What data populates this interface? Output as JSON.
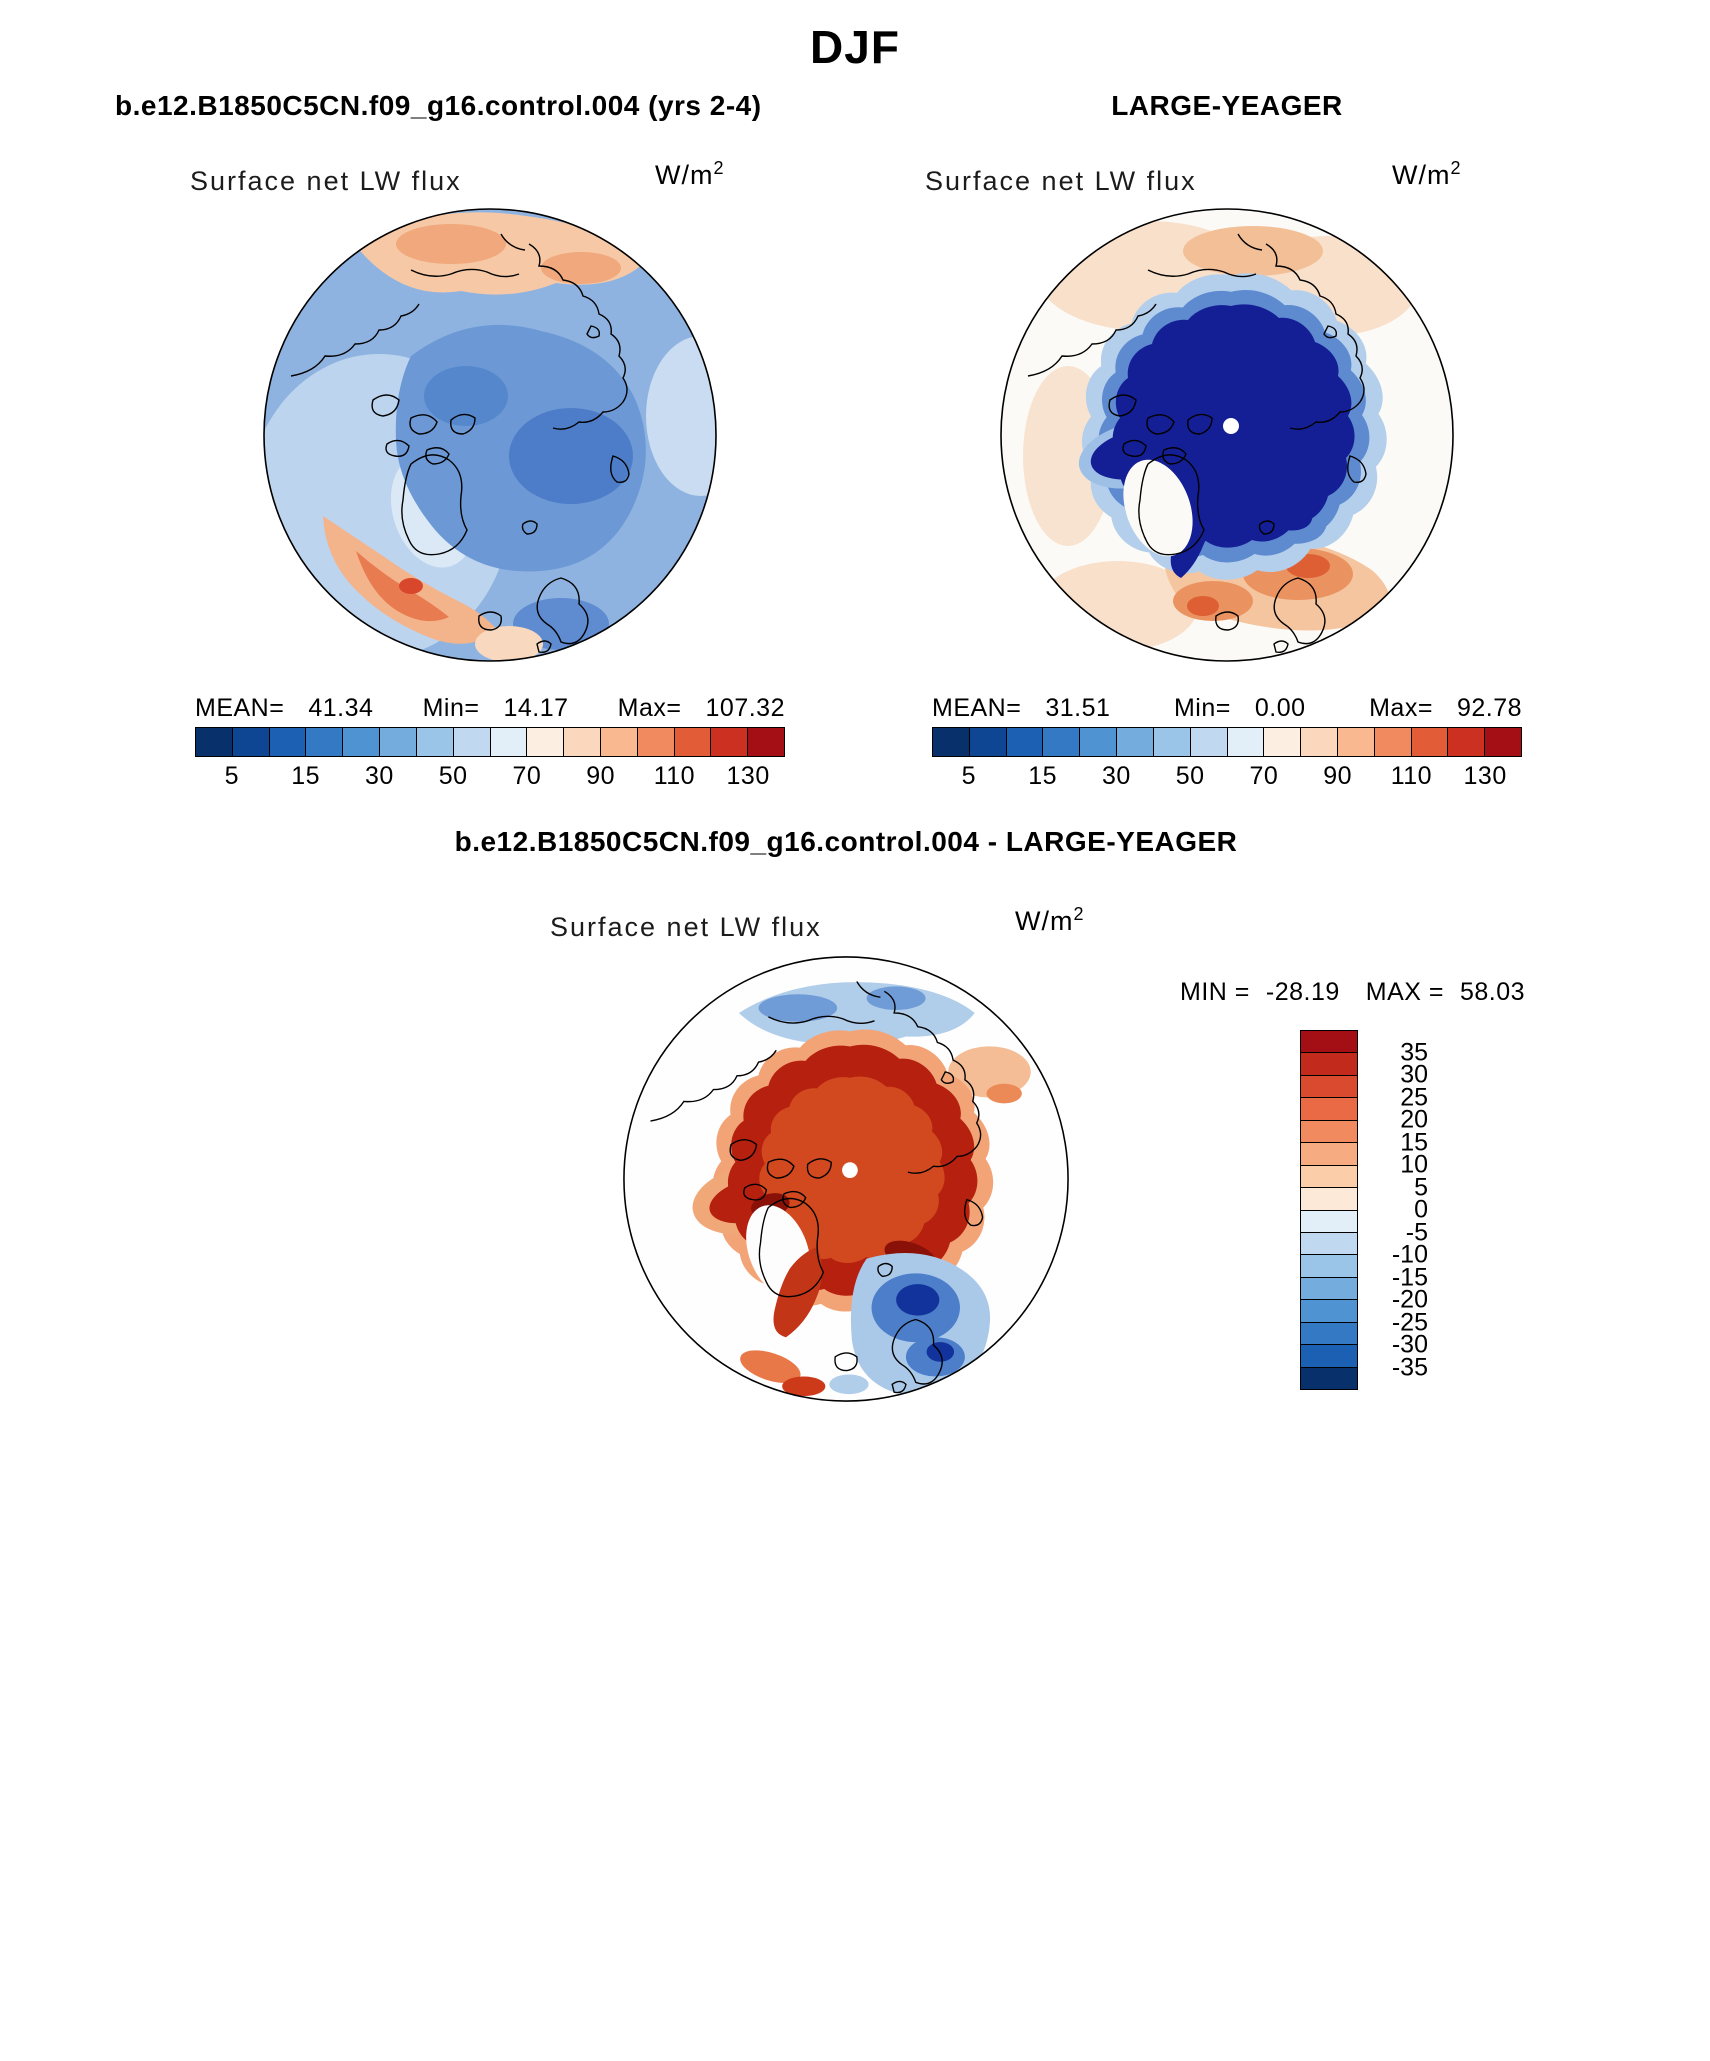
{
  "header": {
    "season_title": "DJF",
    "left_run_label": "b.e12.B1850C5CN.f09_g16.control.004 (yrs 2-4)",
    "right_run_label": "LARGE-YEAGER",
    "diff_heading": "b.e12.B1850C5CN.f09_g16.control.004 - LARGE-YEAGER"
  },
  "chart_data": [
    {
      "type": "heatmap",
      "panel": "model",
      "season": "DJF",
      "source": "b.e12.B1850C5CN.f09_g16.control.004 (yrs 2-4)",
      "title": "Surface net LW flux",
      "units_base": "W/m",
      "units_exp": "2",
      "projection": "north-polar-stereographic",
      "stats": {
        "mean_label": "MEAN=",
        "mean": "41.34",
        "min_label": "Min=",
        "min": "14.17",
        "max_label": "Max=",
        "max": "107.32"
      },
      "colorbar": {
        "orientation": "horizontal",
        "tick_values": [
          5,
          15,
          30,
          50,
          70,
          90,
          110,
          130
        ],
        "colors": [
          "#08306b",
          "#0f4694",
          "#1c60b4",
          "#3379c4",
          "#4f93d2",
          "#74acdd",
          "#9ac4e8",
          "#c0d9f0",
          "#e2eef8",
          "#fcefe2",
          "#fbd8bd",
          "#f9b890",
          "#f18a5f",
          "#e35c38",
          "#cc3021",
          "#a30f15"
        ]
      }
    },
    {
      "type": "heatmap",
      "panel": "observations",
      "season": "DJF",
      "source": "LARGE-YEAGER",
      "title": "Surface net LW flux",
      "units_base": "W/m",
      "units_exp": "2",
      "projection": "north-polar-stereographic",
      "stats": {
        "mean_label": "MEAN=",
        "mean": "31.51",
        "min_label": "Min=",
        "min": "0.00",
        "max_label": "Max=",
        "max": "92.78"
      },
      "colorbar": {
        "orientation": "horizontal",
        "tick_values": [
          5,
          15,
          30,
          50,
          70,
          90,
          110,
          130
        ],
        "colors": [
          "#08306b",
          "#0f4694",
          "#1c60b4",
          "#3379c4",
          "#4f93d2",
          "#74acdd",
          "#9ac4e8",
          "#c0d9f0",
          "#e2eef8",
          "#fcefe2",
          "#fbd8bd",
          "#f9b890",
          "#f18a5f",
          "#e35c38",
          "#cc3021",
          "#a30f15"
        ]
      }
    },
    {
      "type": "heatmap",
      "panel": "difference",
      "season": "DJF",
      "source": "b.e12.B1850C5CN.f09_g16.control.004 - LARGE-YEAGER",
      "title": "Surface net LW flux",
      "units_base": "W/m",
      "units_exp": "2",
      "projection": "north-polar-stereographic",
      "stats": {
        "min_label": "MIN =",
        "min": "-28.19",
        "max_label": "MAX =",
        "max": "58.03"
      },
      "colorbar": {
        "orientation": "vertical",
        "tick_values": [
          35,
          30,
          25,
          20,
          15,
          10,
          5,
          0,
          -5,
          -10,
          -15,
          -20,
          -25,
          -30,
          -35
        ],
        "colors": [
          "#a30f15",
          "#c22a1c",
          "#d94a2e",
          "#e96a44",
          "#f18a5f",
          "#f7ab80",
          "#fbcda8",
          "#fce9d8",
          "#e2eef8",
          "#c0d9f0",
          "#9ac4e8",
          "#74acdd",
          "#4f93d2",
          "#3379c4",
          "#1c60b4",
          "#08306b"
        ]
      }
    }
  ]
}
